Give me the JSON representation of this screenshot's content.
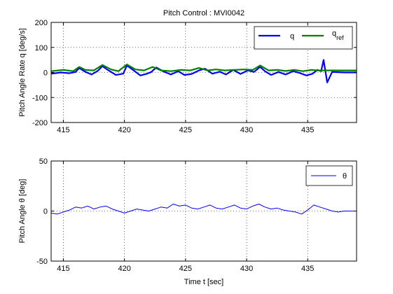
{
  "chart_data": [
    {
      "type": "line",
      "title": "Pitch Control : MVI0042",
      "xlabel": "",
      "ylabel": "Pitch Angle Rate q [deg/s]",
      "xlim": [
        414,
        439
      ],
      "ylim": [
        -200,
        200
      ],
      "xticks": [
        415,
        420,
        425,
        430,
        435
      ],
      "yticks": [
        200,
        100,
        0,
        -100,
        -200
      ],
      "grid": true,
      "legend_position": "top-right",
      "series": [
        {
          "name": "q",
          "color": "#0000ff",
          "x": [
            414,
            414.8,
            415.5,
            416.0,
            416.3,
            416.7,
            417.3,
            417.8,
            418.2,
            418.7,
            419.3,
            419.9,
            420.2,
            420.7,
            421.3,
            421.8,
            422.2,
            422.6,
            423.2,
            423.8,
            424.4,
            424.9,
            425.5,
            426.1,
            426.6,
            427.2,
            427.8,
            428.3,
            428.9,
            429.5,
            430.1,
            430.6,
            431.1,
            431.5,
            432.0,
            432.6,
            433.2,
            433.8,
            434.4,
            434.9,
            435.4,
            435.8,
            436.1,
            436.3,
            436.6,
            437.0,
            438.0,
            439
          ],
          "y": [
            -5,
            0,
            -3,
            2,
            18,
            5,
            -8,
            6,
            25,
            8,
            -10,
            -5,
            28,
            10,
            -12,
            -6,
            2,
            20,
            4,
            -8,
            5,
            -10,
            -6,
            8,
            15,
            -5,
            3,
            -8,
            10,
            -6,
            8,
            2,
            22,
            5,
            -10,
            2,
            -8,
            5,
            -3,
            -12,
            -5,
            10,
            5,
            50,
            -40,
            2,
            0,
            0
          ]
        },
        {
          "name": "q_ref",
          "color": "#008000",
          "x": [
            414,
            415,
            415.8,
            416.3,
            416.8,
            417.5,
            418.2,
            418.9,
            419.5,
            420.2,
            420.9,
            421.6,
            422.3,
            423.0,
            423.8,
            424.6,
            425.4,
            426.1,
            426.8,
            427.5,
            428.2,
            429.0,
            429.8,
            430.5,
            431.1,
            431.8,
            432.5,
            433.2,
            433.9,
            434.6,
            435.3,
            435.8,
            436.3,
            437.0,
            438.0,
            439
          ],
          "y": [
            5,
            10,
            5,
            22,
            10,
            8,
            30,
            12,
            5,
            32,
            12,
            8,
            22,
            8,
            5,
            10,
            8,
            18,
            8,
            12,
            8,
            10,
            12,
            10,
            28,
            8,
            10,
            6,
            10,
            5,
            10,
            8,
            8,
            8,
            8,
            8
          ]
        }
      ]
    },
    {
      "type": "line",
      "title": "",
      "xlabel": "Time t [sec]",
      "ylabel": "Pitch Angle θ [deg]",
      "xlim": [
        414,
        439
      ],
      "ylim": [
        -50,
        50
      ],
      "xticks": [
        415,
        420,
        425,
        430,
        435
      ],
      "yticks": [
        50,
        0,
        -50
      ],
      "grid": true,
      "legend_position": "top-right",
      "series": [
        {
          "name": "θ",
          "color": "#0000ff",
          "x": [
            414,
            414.5,
            415.0,
            415.5,
            416.0,
            416.5,
            417.0,
            417.5,
            418.0,
            418.5,
            419.0,
            419.5,
            420.0,
            420.5,
            421.0,
            421.5,
            422.0,
            422.5,
            423.0,
            423.5,
            424.0,
            424.5,
            425.0,
            425.5,
            426.0,
            426.5,
            427.0,
            427.5,
            428.0,
            428.5,
            429.0,
            429.5,
            430.0,
            430.5,
            431.0,
            431.5,
            432.0,
            432.5,
            433.0,
            433.5,
            434.0,
            434.5,
            435.0,
            435.5,
            436.0,
            436.5,
            437.0,
            437.5,
            438.0,
            439
          ],
          "y": [
            -2,
            -3,
            -1,
            1,
            4,
            3,
            5,
            2,
            4,
            5,
            2,
            0,
            -2,
            0,
            2,
            1,
            0,
            2,
            4,
            3,
            7,
            5,
            6,
            3,
            2,
            4,
            6,
            3,
            2,
            4,
            6,
            3,
            2,
            5,
            7,
            4,
            2,
            3,
            1,
            0,
            -1,
            -3,
            1,
            6,
            4,
            2,
            0,
            -1,
            0,
            0
          ]
        }
      ]
    }
  ]
}
